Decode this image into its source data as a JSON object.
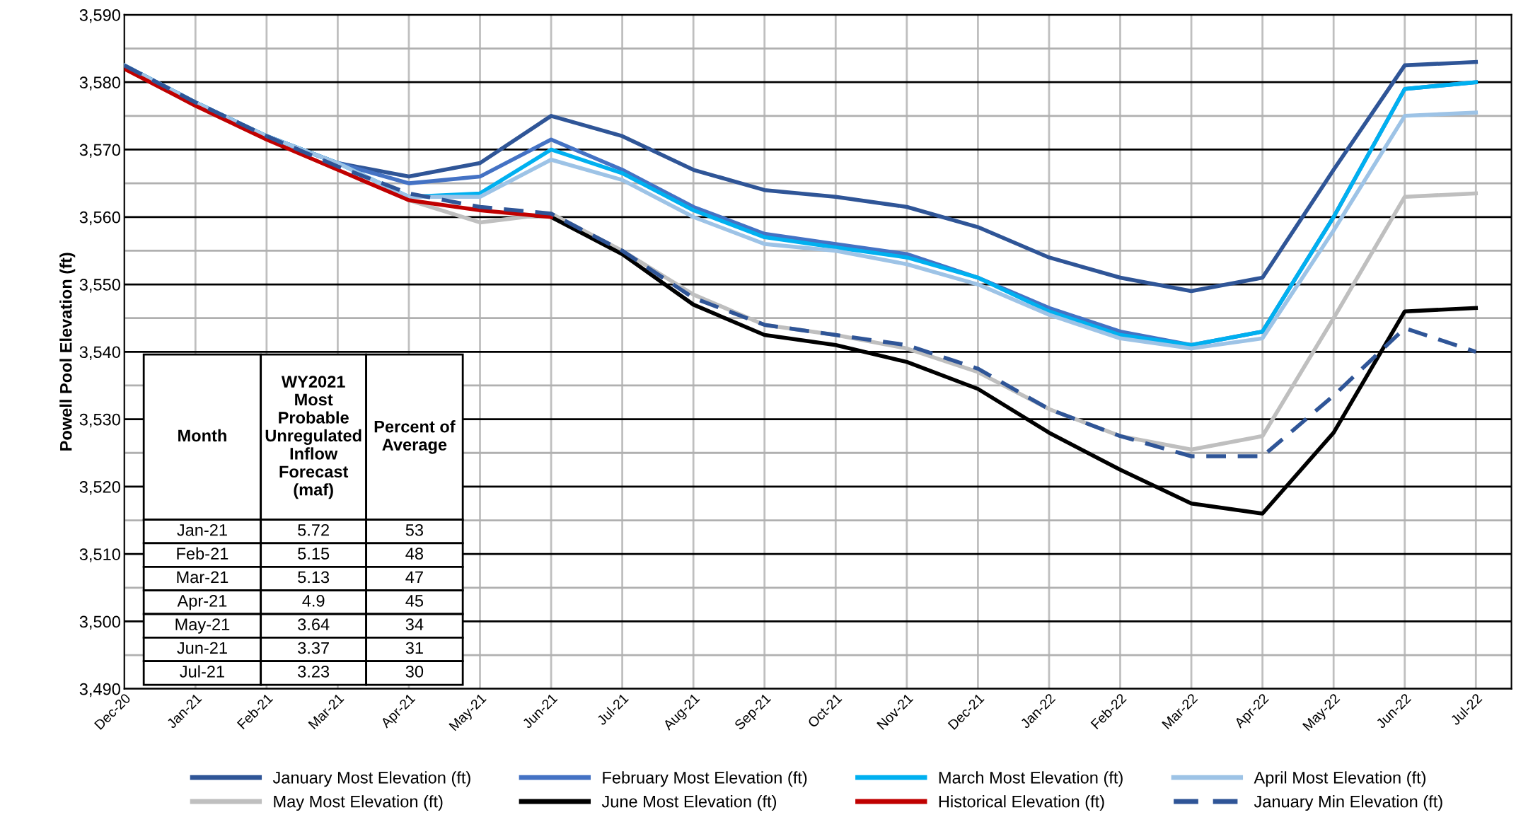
{
  "chart_data": {
    "type": "line",
    "ylabel": "Powell Pool Elevation (ft)",
    "categories": [
      "Dec-20",
      "Jan-21",
      "Feb-21",
      "Mar-21",
      "Apr-21",
      "May-21",
      "Jun-21",
      "Jul-21",
      "Aug-21",
      "Sep-21",
      "Oct-21",
      "Nov-21",
      "Dec-21",
      "Jan-22",
      "Feb-22",
      "Mar-22",
      "Apr-22",
      "May-22",
      "Jun-22",
      "Jul-22"
    ],
    "series": [
      {
        "name": "January Most Elevation (ft)",
        "color": "#2f5597",
        "values": [
          3582.5,
          3577,
          3572,
          3568,
          3566,
          3568,
          3575,
          3572,
          3567,
          3564,
          3563,
          3561.5,
          3558.5,
          3554,
          3551,
          3549,
          3551,
          3567,
          3582.5,
          3583
        ]
      },
      {
        "name": "February Most Elevation (ft)",
        "color": "#4472c4",
        "values": [
          3582.5,
          3577,
          3572,
          3568,
          3565,
          3566,
          3571.5,
          3567,
          3561.5,
          3557.5,
          3556,
          3554.5,
          3551,
          3546.5,
          3543,
          3541,
          3543,
          3560,
          3579,
          3580
        ]
      },
      {
        "name": "March Most Elevation (ft)",
        "color": "#00b0f0",
        "values": [
          3582.5,
          3577,
          3572,
          3568,
          3563,
          3563.5,
          3570,
          3566.5,
          3561,
          3557,
          3555.5,
          3554,
          3551,
          3546,
          3542.5,
          3541,
          3543,
          3560,
          3579,
          3580
        ]
      },
      {
        "name": "April Most Elevation (ft)",
        "color": "#9dc3e6",
        "values": [
          3582.5,
          3577,
          3572,
          3568,
          3563,
          3563,
          3568.5,
          3565.5,
          3560,
          3556,
          3555,
          3553,
          3550,
          3545.5,
          3542,
          3540.5,
          3542,
          3558,
          3575,
          3575.5
        ]
      },
      {
        "name": "May Most Elevation (ft)",
        "color": "#bfbfbf",
        "values": [
          null,
          null,
          null,
          null,
          3562.5,
          3559.2,
          3560.5,
          3555,
          3548.5,
          3544,
          3542.5,
          3540.5,
          3537,
          3531.5,
          3527.5,
          3525.5,
          3527.5,
          3545,
          3563,
          3563.5
        ]
      },
      {
        "name": "June Most Elevation (ft)",
        "color": "#000000",
        "values": [
          null,
          null,
          null,
          null,
          null,
          null,
          3560,
          3554.5,
          3547,
          3542.5,
          3541,
          3538.5,
          3534.5,
          3528,
          3522.5,
          3517.5,
          3516,
          3528,
          3546,
          3546.5
        ]
      },
      {
        "name": "Historical Elevation (ft)",
        "color": "#c00000",
        "values": [
          3582,
          3576.5,
          3571.5,
          3567,
          3562.5,
          3561,
          3560,
          null,
          null,
          null,
          null,
          null,
          null,
          null,
          null,
          null,
          null,
          null,
          null,
          null
        ]
      },
      {
        "name": "January Min Elevation (ft)",
        "color": "#2f5597",
        "line_style": "dashed",
        "values": [
          3582.5,
          3577,
          3572,
          3567.5,
          3563.5,
          3561.5,
          3560.5,
          3555,
          3548,
          3544,
          3542.5,
          3541,
          3537.5,
          3531.5,
          3527.5,
          3524.5,
          3524.5,
          3533.5,
          3543.5,
          3540
        ]
      }
    ],
    "ylim": [
      3490,
      3590
    ],
    "yticks": [
      {
        "value": 3490,
        "label": "3,490"
      },
      {
        "value": 3495,
        "label": null
      },
      {
        "value": 3500,
        "label": "3,500"
      },
      {
        "value": 3505,
        "label": null
      },
      {
        "value": 3510,
        "label": "3,510"
      },
      {
        "value": 3515,
        "label": null
      },
      {
        "value": 3520,
        "label": "3,520"
      },
      {
        "value": 3525,
        "label": null
      },
      {
        "value": 3530,
        "label": "3,530"
      },
      {
        "value": 3535,
        "label": null
      },
      {
        "value": 3540,
        "label": "3,540"
      },
      {
        "value": 3545,
        "label": null
      },
      {
        "value": 3550,
        "label": "3,550"
      },
      {
        "value": 3555,
        "label": null
      },
      {
        "value": 3560,
        "label": "3,560"
      },
      {
        "value": 3565,
        "label": null
      },
      {
        "value": 3570,
        "label": "3,570"
      },
      {
        "value": 3575,
        "label": null
      },
      {
        "value": 3580,
        "label": "3,580"
      },
      {
        "value": 3585,
        "label": null
      },
      {
        "value": 3590,
        "label": "3,590"
      }
    ],
    "grid": true,
    "legend": "bottom",
    "marker": "none",
    "annotations": [
      "Month",
      "WY2021\nMost\nProbable\nUnregulated\nInflow\nForecast\n(maf)",
      "Percent of\nAverage",
      "Jan-21",
      "5.72",
      "53",
      "Feb-21",
      "5.15",
      "48",
      "Mar-21",
      "5.13",
      "47",
      "Apr-21",
      "4.9",
      "45",
      "May-21",
      "3.64",
      "34",
      "Jun-21",
      "3.37",
      "31",
      "Jul-21",
      "3.23",
      "30"
    ]
  }
}
